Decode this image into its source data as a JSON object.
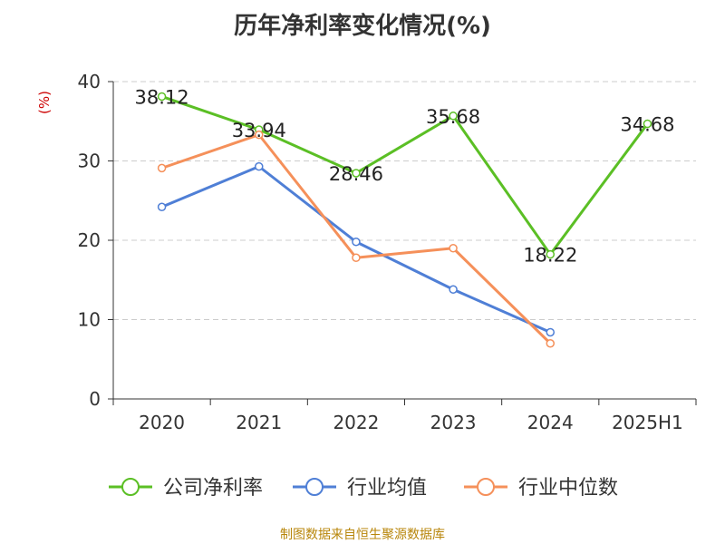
{
  "chart_data": {
    "type": "line",
    "title": "历年净利率变化情况(%)",
    "ylabel": "(%)",
    "categories": [
      "2020",
      "2021",
      "2022",
      "2023",
      "2024",
      "2025H1"
    ],
    "ylim": [
      0,
      40
    ],
    "yticks": [
      "0",
      "10",
      "20",
      "30",
      "40"
    ],
    "grid": "horizontal-dashed",
    "legend_position": "bottom",
    "series": [
      {
        "name": "公司净利率",
        "color": "#5bbf25",
        "values": [
          38.12,
          33.94,
          28.46,
          35.68,
          18.22,
          34.68
        ],
        "labels": [
          "38.12",
          "33.94",
          "28.46",
          "35.68",
          "18.22",
          "34.68"
        ]
      },
      {
        "name": "行业均值",
        "color": "#4f7fd6",
        "values": [
          24.2,
          29.3,
          19.8,
          13.8,
          8.4,
          null
        ]
      },
      {
        "name": "行业中位数",
        "color": "#f5905a",
        "values": [
          29.1,
          33.3,
          17.8,
          19.0,
          7.0,
          null
        ]
      }
    ]
  },
  "footer": {
    "source": "制图数据来自恒生聚源数据库"
  }
}
